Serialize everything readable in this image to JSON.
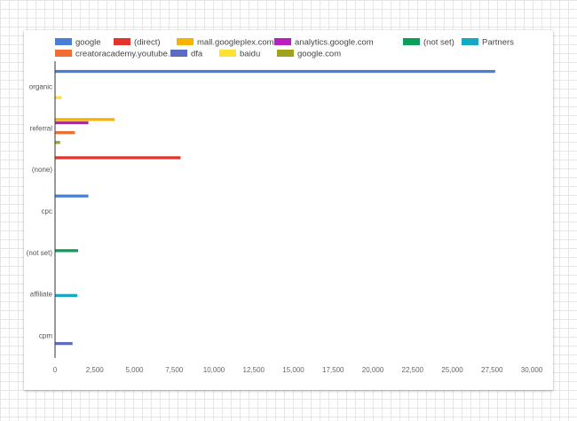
{
  "chart_data": {
    "type": "bar",
    "orientation": "horizontal",
    "categories": [
      "organic",
      "referral",
      "(none)",
      "cpc",
      "(not set)",
      "affiliate",
      "cpm"
    ],
    "series": [
      {
        "name": "google",
        "color": "#4a7fd8",
        "values": [
          27700,
          null,
          null,
          2100,
          null,
          null,
          null
        ]
      },
      {
        "name": "(direct)",
        "color": "#e2342a",
        "values": [
          null,
          null,
          7900,
          null,
          null,
          null,
          null
        ]
      },
      {
        "name": "mall.googleplex.com",
        "color": "#f6b400",
        "values": [
          null,
          3750,
          null,
          null,
          null,
          null,
          null
        ]
      },
      {
        "name": "analytics.google.com",
        "color": "#b81fbf",
        "values": [
          null,
          2100,
          null,
          null,
          null,
          null,
          null
        ]
      },
      {
        "name": "(not set)",
        "color": "#0f9d58",
        "values": [
          null,
          null,
          null,
          null,
          1450,
          null,
          null
        ]
      },
      {
        "name": "Partners",
        "color": "#17a9c2",
        "values": [
          null,
          null,
          null,
          null,
          null,
          1400,
          null
        ]
      },
      {
        "name": "creatoracademy.youtube.com",
        "color": "#f16d34",
        "values": [
          null,
          1250,
          null,
          null,
          null,
          null,
          null
        ]
      },
      {
        "name": "dfa",
        "color": "#5c6bc0",
        "values": [
          null,
          null,
          null,
          null,
          null,
          null,
          1100
        ]
      },
      {
        "name": "baidu",
        "color": "#fde135",
        "values": [
          420,
          null,
          null,
          null,
          null,
          null,
          null
        ]
      },
      {
        "name": "google.com",
        "color": "#9ea21c",
        "values": [
          null,
          320,
          null,
          null,
          null,
          null,
          null
        ]
      }
    ],
    "xlim": [
      0,
      30000
    ],
    "xticks": [
      "0",
      "2,500",
      "5,000",
      "7,500",
      "10,000",
      "12,500",
      "15,000",
      "17,500",
      "20,000",
      "22,500",
      "25,000",
      "27,500",
      "30,000"
    ],
    "xtick_values": [
      0,
      2500,
      5000,
      7500,
      10000,
      12500,
      15000,
      17500,
      20000,
      22500,
      25000,
      27500,
      30000
    ],
    "legend_position": "top",
    "grid": false
  }
}
